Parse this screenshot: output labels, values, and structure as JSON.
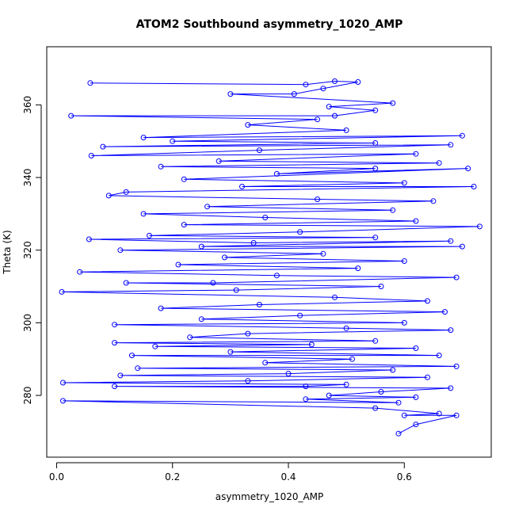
{
  "chart_data": {
    "type": "scatter",
    "title": "ATOM2 Southbound asymmetry_1020_AMP",
    "xlabel": "asymmetry_1020_AMP",
    "ylabel": "Theta (K)",
    "xlim": [
      -0.017,
      0.75
    ],
    "ylim": [
      263,
      376
    ],
    "x_ticks": [
      0.0,
      0.2,
      0.4,
      0.6
    ],
    "x_tick_labels": [
      "0.0",
      "0.2",
      "0.4",
      "0.6"
    ],
    "y_ticks": [
      280,
      300,
      320,
      340,
      360
    ],
    "y_tick_labels": [
      "280",
      "300",
      "320",
      "340",
      "360"
    ],
    "grid": false,
    "legend": "none",
    "series": [
      {
        "color": "#0000ff",
        "marker": "open-circle",
        "connected": true,
        "points": [
          [
            0.058,
            366
          ],
          [
            0.43,
            365.6
          ],
          [
            0.48,
            366.5
          ],
          [
            0.52,
            366.3
          ],
          [
            0.46,
            364.5
          ],
          [
            0.41,
            363
          ],
          [
            0.3,
            363
          ],
          [
            0.58,
            360.5
          ],
          [
            0.47,
            359.5
          ],
          [
            0.55,
            358.5
          ],
          [
            0.48,
            357
          ],
          [
            0.025,
            357
          ],
          [
            0.45,
            356
          ],
          [
            0.33,
            354.5
          ],
          [
            0.5,
            353
          ],
          [
            0.15,
            351
          ],
          [
            0.7,
            351.5
          ],
          [
            0.2,
            350
          ],
          [
            0.55,
            349.5
          ],
          [
            0.08,
            348.5
          ],
          [
            0.68,
            349
          ],
          [
            0.35,
            347.5
          ],
          [
            0.06,
            346
          ],
          [
            0.62,
            346.5
          ],
          [
            0.28,
            344.5
          ],
          [
            0.66,
            344
          ],
          [
            0.18,
            343
          ],
          [
            0.55,
            342.5
          ],
          [
            0.38,
            341
          ],
          [
            0.71,
            342.5
          ],
          [
            0.22,
            339.5
          ],
          [
            0.6,
            338.5
          ],
          [
            0.32,
            337.5
          ],
          [
            0.72,
            337.5
          ],
          [
            0.12,
            336
          ],
          [
            0.09,
            335
          ],
          [
            0.45,
            334
          ],
          [
            0.65,
            333.5
          ],
          [
            0.26,
            332
          ],
          [
            0.58,
            331
          ],
          [
            0.15,
            330
          ],
          [
            0.36,
            329
          ],
          [
            0.62,
            328
          ],
          [
            0.22,
            327
          ],
          [
            0.73,
            326.5
          ],
          [
            0.42,
            325
          ],
          [
            0.16,
            324
          ],
          [
            0.55,
            323.5
          ],
          [
            0.056,
            323
          ],
          [
            0.34,
            322
          ],
          [
            0.68,
            322.5
          ],
          [
            0.25,
            321
          ],
          [
            0.7,
            321
          ],
          [
            0.11,
            320
          ],
          [
            0.46,
            319
          ],
          [
            0.29,
            318
          ],
          [
            0.6,
            317
          ],
          [
            0.21,
            316
          ],
          [
            0.52,
            315
          ],
          [
            0.04,
            314
          ],
          [
            0.38,
            313
          ],
          [
            0.69,
            312.5
          ],
          [
            0.27,
            311
          ],
          [
            0.12,
            311
          ],
          [
            0.56,
            310
          ],
          [
            0.31,
            309
          ],
          [
            0.009,
            308.5
          ],
          [
            0.48,
            307
          ],
          [
            0.64,
            306
          ],
          [
            0.35,
            305
          ],
          [
            0.18,
            304
          ],
          [
            0.67,
            303
          ],
          [
            0.42,
            302
          ],
          [
            0.25,
            301
          ],
          [
            0.6,
            300
          ],
          [
            0.1,
            299.5
          ],
          [
            0.5,
            298.5
          ],
          [
            0.68,
            298
          ],
          [
            0.33,
            297
          ],
          [
            0.23,
            296
          ],
          [
            0.55,
            295
          ],
          [
            0.1,
            294.5
          ],
          [
            0.44,
            294
          ],
          [
            0.17,
            293.5
          ],
          [
            0.62,
            293
          ],
          [
            0.3,
            292
          ],
          [
            0.66,
            291
          ],
          [
            0.13,
            291
          ],
          [
            0.51,
            290
          ],
          [
            0.36,
            289
          ],
          [
            0.69,
            288
          ],
          [
            0.14,
            287.5
          ],
          [
            0.58,
            287
          ],
          [
            0.4,
            286
          ],
          [
            0.11,
            285.5
          ],
          [
            0.64,
            285
          ],
          [
            0.33,
            284
          ],
          [
            0.011,
            283.5
          ],
          [
            0.5,
            283
          ],
          [
            0.43,
            282.5
          ],
          [
            0.1,
            282.5
          ],
          [
            0.68,
            282
          ],
          [
            0.56,
            281
          ],
          [
            0.47,
            280
          ],
          [
            0.62,
            279.5
          ],
          [
            0.43,
            279
          ],
          [
            0.59,
            278
          ],
          [
            0.011,
            278.5
          ],
          [
            0.55,
            276.5
          ],
          [
            0.66,
            275
          ],
          [
            0.6,
            274.5
          ],
          [
            0.69,
            274.5
          ],
          [
            0.62,
            272
          ],
          [
            0.59,
            269.5
          ]
        ]
      }
    ]
  }
}
